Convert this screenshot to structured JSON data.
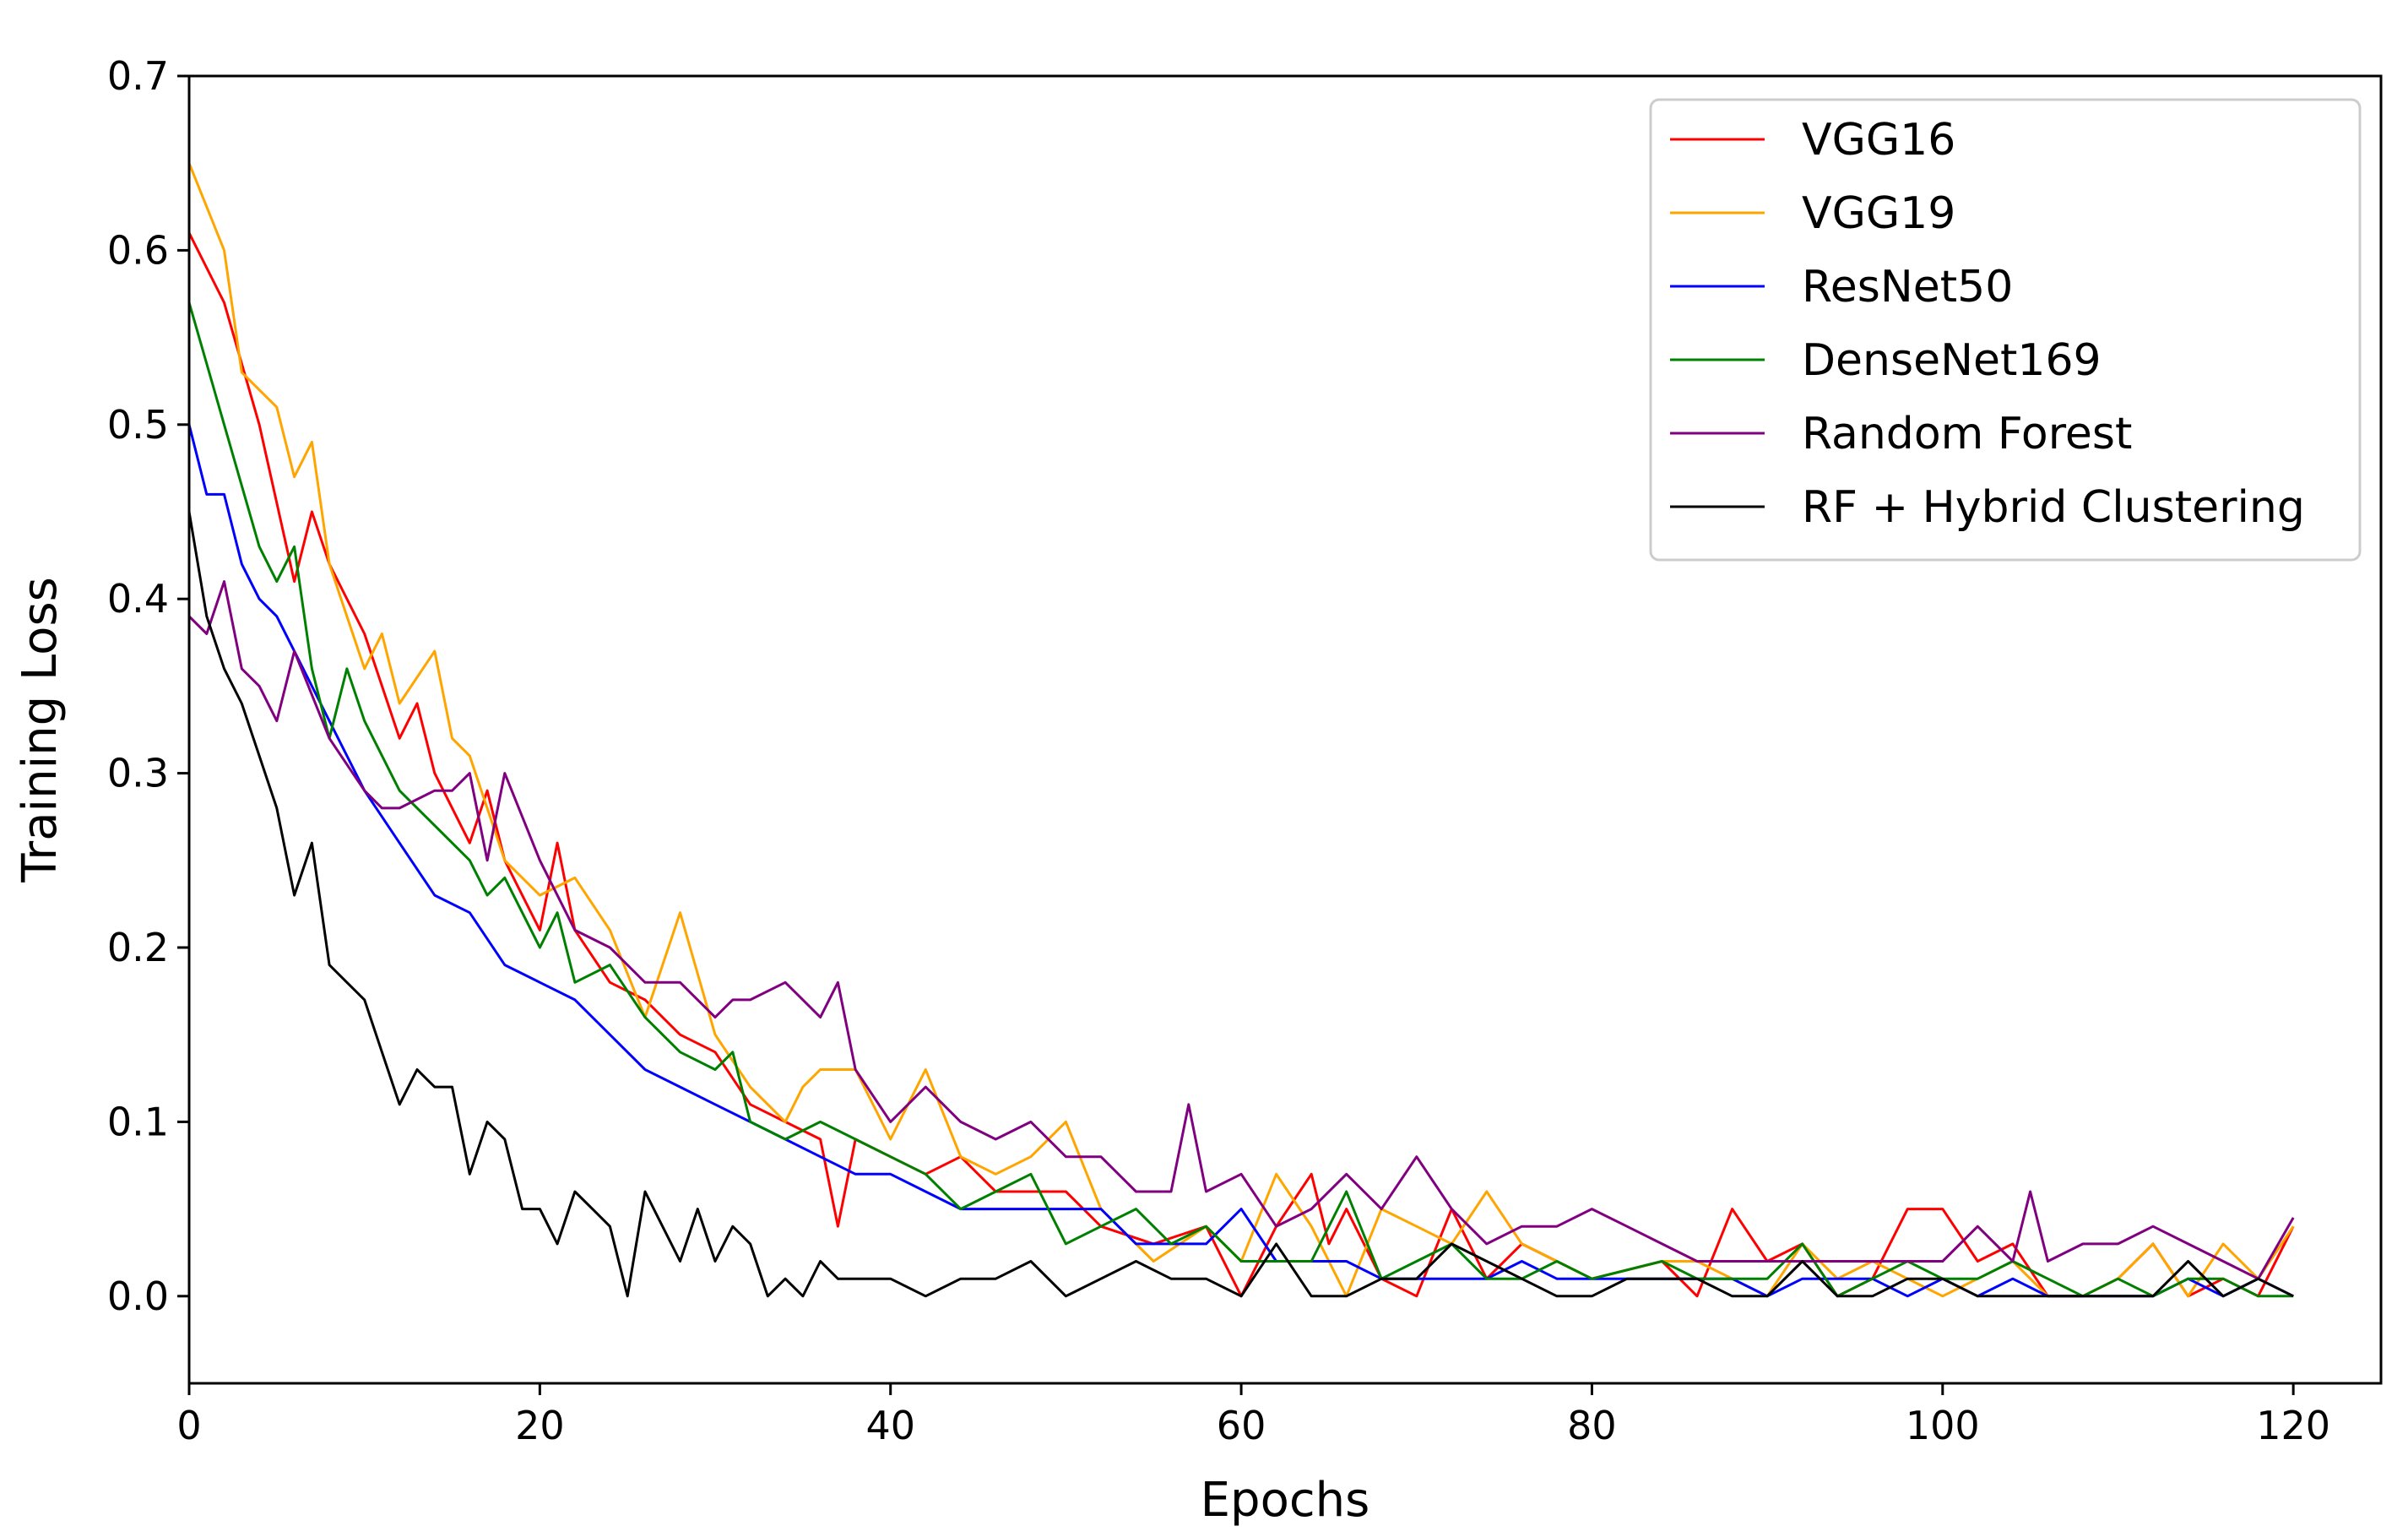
{
  "chart_data": {
    "type": "line",
    "title": "",
    "xlabel": "Epochs",
    "ylabel": "Training Loss",
    "xlim": [
      0,
      125
    ],
    "ylim": [
      -0.05,
      0.7
    ],
    "xticks": [
      0,
      20,
      40,
      60,
      80,
      100,
      120
    ],
    "yticks": [
      0.0,
      0.1,
      0.2,
      0.3,
      0.4,
      0.5,
      0.6,
      0.7
    ],
    "xtick_labels": [
      "0",
      "20",
      "40",
      "60",
      "80",
      "100",
      "120"
    ],
    "ytick_labels": [
      "0.0",
      "0.1",
      "0.2",
      "0.3",
      "0.4",
      "0.5",
      "0.6",
      "0.7"
    ],
    "grid": false,
    "legend_position": "top-right",
    "series": [
      {
        "name": "VGG16",
        "color": "#ff0000",
        "x": [
          0,
          2,
          4,
          6,
          7,
          8,
          10,
          12,
          13,
          14,
          16,
          17,
          18,
          20,
          21,
          22,
          24,
          26,
          28,
          30,
          32,
          34,
          36,
          37,
          38,
          40,
          42,
          44,
          46,
          48,
          50,
          52,
          55,
          58,
          60,
          62,
          64,
          65,
          66,
          68,
          70,
          72,
          74,
          76,
          78,
          80,
          84,
          86,
          88,
          90,
          92,
          94,
          96,
          98,
          100,
          102,
          104,
          106,
          108,
          110,
          112,
          114,
          116,
          118,
          120
        ],
        "values": [
          0.61,
          0.57,
          0.5,
          0.41,
          0.45,
          0.42,
          0.38,
          0.32,
          0.34,
          0.3,
          0.26,
          0.29,
          0.25,
          0.21,
          0.26,
          0.21,
          0.18,
          0.17,
          0.15,
          0.14,
          0.11,
          0.1,
          0.09,
          0.04,
          0.09,
          0.08,
          0.07,
          0.08,
          0.06,
          0.06,
          0.06,
          0.04,
          0.03,
          0.04,
          0.0,
          0.04,
          0.07,
          0.03,
          0.05,
          0.01,
          0.0,
          0.05,
          0.01,
          0.03,
          0.02,
          0.01,
          0.02,
          0.0,
          0.05,
          0.02,
          0.03,
          0.0,
          0.01,
          0.05,
          0.05,
          0.02,
          0.03,
          0.0,
          0.0,
          0.01,
          0.03,
          0.0,
          0.01,
          0.0,
          0.04
        ]
      },
      {
        "name": "VGG19",
        "color": "#ffa500",
        "x": [
          0,
          2,
          3,
          5,
          6,
          7,
          8,
          10,
          11,
          12,
          14,
          15,
          16,
          18,
          20,
          22,
          24,
          26,
          28,
          30,
          32,
          34,
          35,
          36,
          38,
          40,
          42,
          44,
          46,
          48,
          50,
          52,
          55,
          58,
          60,
          62,
          64,
          66,
          68,
          70,
          72,
          74,
          76,
          78,
          80,
          84,
          86,
          88,
          90,
          92,
          94,
          96,
          98,
          100,
          102,
          104,
          106,
          108,
          110,
          112,
          114,
          116,
          118,
          120
        ],
        "values": [
          0.65,
          0.6,
          0.53,
          0.51,
          0.47,
          0.49,
          0.42,
          0.36,
          0.38,
          0.34,
          0.37,
          0.32,
          0.31,
          0.25,
          0.23,
          0.24,
          0.21,
          0.16,
          0.22,
          0.15,
          0.12,
          0.1,
          0.12,
          0.13,
          0.13,
          0.09,
          0.13,
          0.08,
          0.07,
          0.08,
          0.1,
          0.05,
          0.02,
          0.04,
          0.02,
          0.07,
          0.04,
          0.0,
          0.05,
          0.04,
          0.03,
          0.06,
          0.03,
          0.02,
          0.01,
          0.02,
          0.02,
          0.01,
          0.0,
          0.03,
          0.01,
          0.02,
          0.01,
          0.0,
          0.01,
          0.02,
          0.0,
          0.0,
          0.01,
          0.03,
          0.0,
          0.03,
          0.01,
          0.04
        ]
      },
      {
        "name": "ResNet50",
        "color": "#0000ff",
        "x": [
          0,
          1,
          2,
          3,
          4,
          5,
          6,
          7,
          8,
          10,
          12,
          14,
          16,
          18,
          20,
          22,
          24,
          26,
          28,
          30,
          32,
          34,
          36,
          38,
          40,
          42,
          44,
          46,
          48,
          50,
          52,
          54,
          56,
          58,
          60,
          62,
          64,
          66,
          68,
          70,
          72,
          74,
          76,
          78,
          80,
          84,
          86,
          88,
          90,
          92,
          94,
          96,
          98,
          100,
          102,
          104,
          106,
          108,
          110,
          112,
          114,
          116,
          118,
          120
        ],
        "values": [
          0.5,
          0.46,
          0.46,
          0.42,
          0.4,
          0.39,
          0.37,
          0.35,
          0.33,
          0.29,
          0.26,
          0.23,
          0.22,
          0.19,
          0.18,
          0.17,
          0.15,
          0.13,
          0.12,
          0.11,
          0.1,
          0.09,
          0.08,
          0.07,
          0.07,
          0.06,
          0.05,
          0.05,
          0.05,
          0.05,
          0.05,
          0.03,
          0.03,
          0.03,
          0.05,
          0.02,
          0.02,
          0.02,
          0.01,
          0.01,
          0.01,
          0.01,
          0.02,
          0.01,
          0.01,
          0.01,
          0.01,
          0.01,
          0.0,
          0.01,
          0.01,
          0.01,
          0.0,
          0.01,
          0.0,
          0.01,
          0.0,
          0.0,
          0.0,
          0.0,
          0.01,
          0.0,
          0.01,
          0.0
        ]
      },
      {
        "name": "DenseNet169",
        "color": "#008000",
        "x": [
          0,
          2,
          4,
          5,
          6,
          7,
          8,
          9,
          10,
          12,
          14,
          16,
          17,
          18,
          20,
          21,
          22,
          24,
          26,
          28,
          30,
          31,
          32,
          34,
          36,
          38,
          40,
          42,
          44,
          46,
          48,
          50,
          52,
          54,
          56,
          58,
          60,
          62,
          64,
          66,
          68,
          70,
          72,
          74,
          76,
          78,
          80,
          84,
          86,
          88,
          90,
          92,
          94,
          96,
          98,
          100,
          102,
          104,
          106,
          108,
          110,
          112,
          114,
          116,
          118,
          120
        ],
        "values": [
          0.57,
          0.5,
          0.43,
          0.41,
          0.43,
          0.36,
          0.32,
          0.36,
          0.33,
          0.29,
          0.27,
          0.25,
          0.23,
          0.24,
          0.2,
          0.22,
          0.18,
          0.19,
          0.16,
          0.14,
          0.13,
          0.14,
          0.1,
          0.09,
          0.1,
          0.09,
          0.08,
          0.07,
          0.05,
          0.06,
          0.07,
          0.03,
          0.04,
          0.05,
          0.03,
          0.04,
          0.02,
          0.02,
          0.02,
          0.06,
          0.01,
          0.02,
          0.03,
          0.01,
          0.01,
          0.02,
          0.01,
          0.02,
          0.01,
          0.01,
          0.01,
          0.03,
          0.0,
          0.01,
          0.02,
          0.01,
          0.01,
          0.02,
          0.01,
          0.0,
          0.01,
          0.0,
          0.01,
          0.01,
          0.0,
          0.0
        ]
      },
      {
        "name": "Random Forest",
        "color": "#800080",
        "x": [
          0,
          1,
          2,
          3,
          4,
          5,
          6,
          8,
          10,
          11,
          12,
          14,
          15,
          16,
          17,
          18,
          20,
          22,
          24,
          26,
          28,
          30,
          31,
          32,
          34,
          35,
          36,
          37,
          38,
          40,
          42,
          44,
          46,
          48,
          50,
          52,
          54,
          56,
          57,
          58,
          60,
          62,
          64,
          66,
          68,
          70,
          72,
          74,
          76,
          78,
          80,
          82,
          84,
          86,
          88,
          90,
          92,
          94,
          96,
          98,
          100,
          102,
          104,
          105,
          106,
          108,
          110,
          112,
          114,
          116,
          118,
          120
        ],
        "values": [
          0.39,
          0.38,
          0.41,
          0.36,
          0.35,
          0.33,
          0.37,
          0.32,
          0.29,
          0.28,
          0.28,
          0.29,
          0.29,
          0.3,
          0.25,
          0.3,
          0.25,
          0.21,
          0.2,
          0.18,
          0.18,
          0.16,
          0.17,
          0.17,
          0.18,
          0.17,
          0.16,
          0.18,
          0.13,
          0.1,
          0.12,
          0.1,
          0.09,
          0.1,
          0.08,
          0.08,
          0.06,
          0.06,
          0.11,
          0.06,
          0.07,
          0.04,
          0.05,
          0.07,
          0.05,
          0.08,
          0.05,
          0.03,
          0.04,
          0.04,
          0.05,
          0.04,
          0.03,
          0.02,
          0.02,
          0.02,
          0.02,
          0.02,
          0.02,
          0.02,
          0.02,
          0.04,
          0.02,
          0.06,
          0.02,
          0.03,
          0.03,
          0.04,
          0.03,
          0.02,
          0.01,
          0.045
        ]
      },
      {
        "name": "RF + Hybrid Clustering",
        "color": "#000000",
        "x": [
          0,
          1,
          2,
          3,
          4,
          5,
          6,
          7,
          8,
          9,
          10,
          11,
          12,
          13,
          14,
          15,
          16,
          17,
          18,
          19,
          20,
          21,
          22,
          23,
          24,
          25,
          26,
          27,
          28,
          29,
          30,
          31,
          32,
          33,
          34,
          35,
          36,
          37,
          38,
          40,
          42,
          44,
          46,
          48,
          50,
          52,
          54,
          56,
          58,
          60,
          62,
          64,
          66,
          68,
          70,
          72,
          74,
          76,
          78,
          80,
          82,
          84,
          86,
          88,
          90,
          92,
          94,
          96,
          98,
          100,
          102,
          104,
          106,
          108,
          110,
          112,
          114,
          116,
          118,
          120
        ],
        "values": [
          0.45,
          0.39,
          0.36,
          0.34,
          0.31,
          0.28,
          0.23,
          0.26,
          0.19,
          0.18,
          0.17,
          0.14,
          0.11,
          0.13,
          0.12,
          0.12,
          0.07,
          0.1,
          0.09,
          0.05,
          0.05,
          0.03,
          0.06,
          0.05,
          0.04,
          0.0,
          0.06,
          0.04,
          0.02,
          0.05,
          0.02,
          0.04,
          0.03,
          0.0,
          0.01,
          0.0,
          0.02,
          0.01,
          0.01,
          0.01,
          0.0,
          0.01,
          0.01,
          0.02,
          0.0,
          0.01,
          0.02,
          0.01,
          0.01,
          0.0,
          0.03,
          0.0,
          0.0,
          0.01,
          0.01,
          0.03,
          0.02,
          0.01,
          0.0,
          0.0,
          0.01,
          0.01,
          0.01,
          0.0,
          0.0,
          0.02,
          0.0,
          0.0,
          0.01,
          0.01,
          0.0,
          0.0,
          0.0,
          0.0,
          0.0,
          0.0,
          0.02,
          0.0,
          0.01,
          0.0
        ]
      }
    ]
  }
}
